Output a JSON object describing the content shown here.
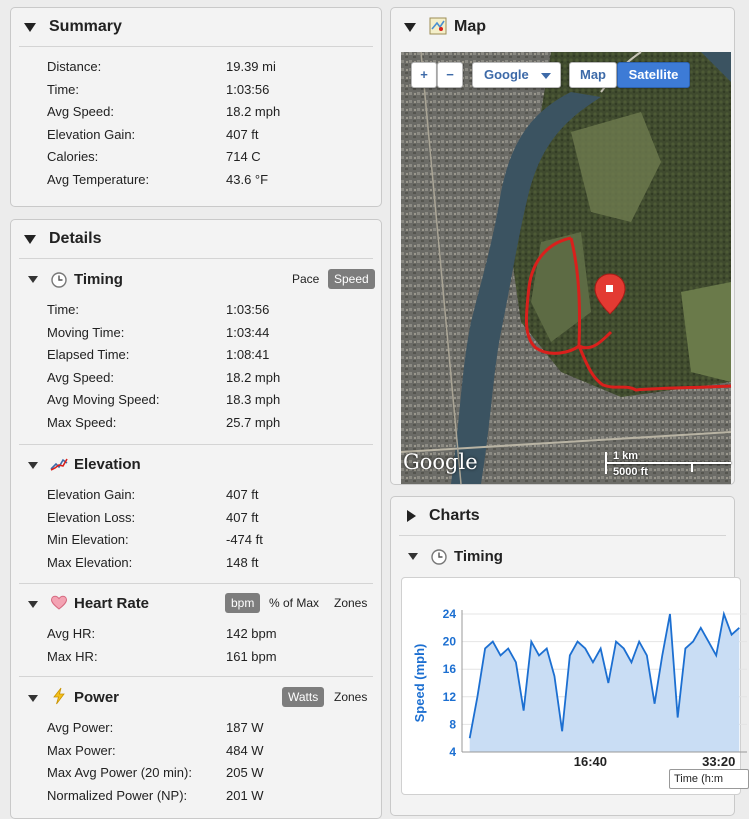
{
  "summary": {
    "title": "Summary",
    "rows": [
      {
        "label": "Distance:",
        "value": "19.39 mi"
      },
      {
        "label": "Time:",
        "value": "1:03:56"
      },
      {
        "label": "Avg Speed:",
        "value": "18.2 mph"
      },
      {
        "label": "Elevation Gain:",
        "value": "407 ft"
      },
      {
        "label": "Calories:",
        "value": "714 C"
      },
      {
        "label": "Avg Temperature:",
        "value": "43.6 °F"
      }
    ]
  },
  "details": {
    "title": "Details",
    "timing": {
      "title": "Timing",
      "toggles": [
        "Pace",
        "Speed"
      ],
      "active_toggle": "Speed",
      "rows": [
        {
          "label": "Time:",
          "value": "1:03:56"
        },
        {
          "label": "Moving Time:",
          "value": "1:03:44"
        },
        {
          "label": "Elapsed Time:",
          "value": "1:08:41"
        },
        {
          "label": "Avg Speed:",
          "value": "18.2 mph"
        },
        {
          "label": "Avg Moving Speed:",
          "value": "18.3 mph"
        },
        {
          "label": "Max Speed:",
          "value": "25.7 mph"
        }
      ]
    },
    "elevation": {
      "title": "Elevation",
      "rows": [
        {
          "label": "Elevation Gain:",
          "value": "407 ft"
        },
        {
          "label": "Elevation Loss:",
          "value": "407 ft"
        },
        {
          "label": "Min Elevation:",
          "value": "-474 ft"
        },
        {
          "label": "Max Elevation:",
          "value": "148 ft"
        }
      ]
    },
    "heart_rate": {
      "title": "Heart Rate",
      "toggles": [
        "bpm",
        "% of Max",
        "Zones"
      ],
      "active_toggle": "bpm",
      "rows": [
        {
          "label": "Avg HR:",
          "value": "142 bpm"
        },
        {
          "label": "Max HR:",
          "value": "161 bpm"
        }
      ]
    },
    "power": {
      "title": "Power",
      "toggles": [
        "Watts",
        "Zones"
      ],
      "active_toggle": "Watts",
      "rows": [
        {
          "label": "Avg Power:",
          "value": "187 W"
        },
        {
          "label": "Max Power:",
          "value": "484 W"
        },
        {
          "label": "Max Avg Power (20 min):",
          "value": "205 W"
        },
        {
          "label": "Normalized Power (NP):",
          "value": "201 W"
        }
      ]
    }
  },
  "map": {
    "title": "Map",
    "zoom_in": "+",
    "zoom_out": "−",
    "provider": "Google",
    "view_map": "Map",
    "view_satellite": "Satellite",
    "active_view": "Satellite",
    "scale_km": "1 km",
    "scale_ft": "5000 ft",
    "watermark": "Google"
  },
  "charts": {
    "title": "Charts",
    "timing_title": "Timing"
  },
  "colors": {
    "accent": "#3d6aa8",
    "route": "#d9201c",
    "chart_line": "#1c6fd1",
    "chart_fill": "#c9ddf4",
    "active_toggle": "#7d7d7d"
  },
  "chart_data": {
    "type": "area",
    "xlabel": "Time (h:m",
    "ylabel": "Speed (mph)",
    "ylim": [
      4,
      24
    ],
    "y_ticks": [
      "24",
      "20",
      "16",
      "12",
      "8",
      "4"
    ],
    "x_ticks": [
      "16:40",
      "33:20"
    ],
    "x_minutes": [
      1.0,
      2.0,
      3.0,
      4.0,
      5.0,
      6.0,
      7.0,
      8.0,
      9.0,
      10.0,
      11.0,
      12.0,
      13.0,
      14.0,
      15.0,
      16.0,
      17.0,
      18.0,
      19.0,
      20.0,
      21.0,
      22.0,
      23.0,
      24.0,
      25.0,
      26.0,
      27.0,
      28.0,
      29.0,
      30.0,
      31.0,
      32.0,
      33.0,
      34.0,
      35.0,
      36.0
    ],
    "speed_mph": [
      6,
      12,
      19,
      20,
      18,
      19,
      17,
      10,
      20,
      18,
      19,
      15,
      7,
      18,
      20,
      19,
      17,
      19,
      14,
      20,
      19,
      17,
      20,
      18,
      11,
      18,
      24,
      9,
      19,
      20,
      22,
      20,
      18,
      24,
      21,
      22
    ]
  }
}
